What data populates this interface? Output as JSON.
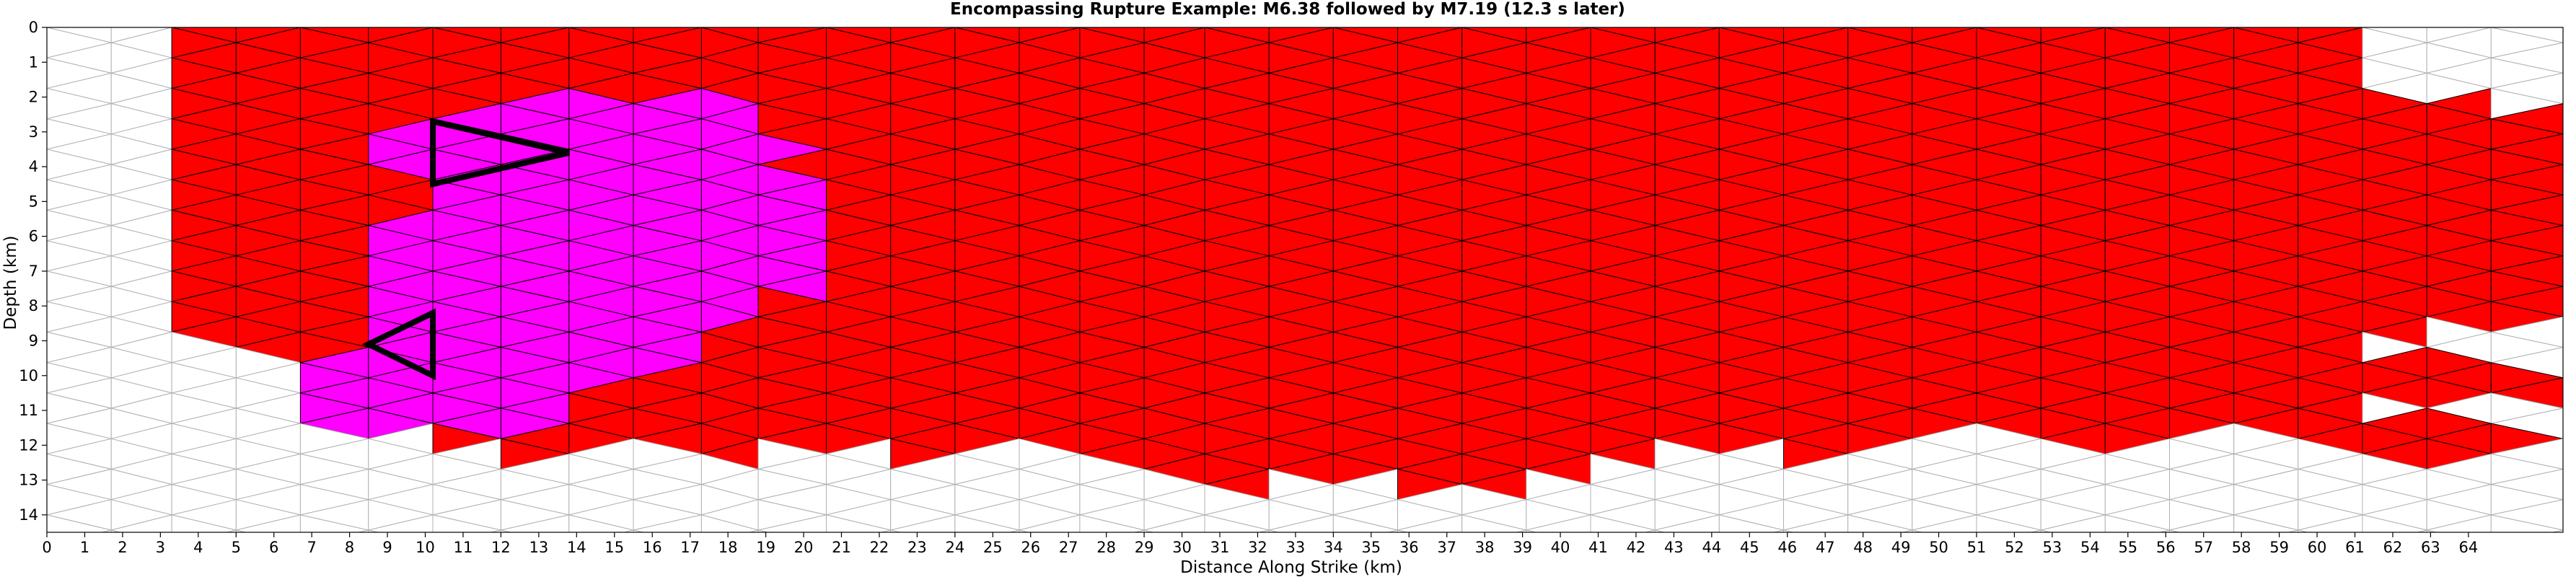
{
  "chart_data": {
    "type": "heatmap",
    "title": "Encompassing Rupture Example: M6.38 followed by M7.19 (12.3 s later)",
    "xlabel": "Distance Along Strike (km)",
    "ylabel": "Depth (km)",
    "xlim": [
      0,
      66.5
    ],
    "ylim": [
      14.5,
      0
    ],
    "x_ticks": [
      0,
      1,
      2,
      3,
      4,
      5,
      6,
      7,
      8,
      9,
      10,
      11,
      12,
      13,
      14,
      15,
      16,
      17,
      18,
      19,
      20,
      21,
      22,
      23,
      24,
      25,
      26,
      27,
      28,
      29,
      30,
      31,
      32,
      33,
      34,
      35,
      36,
      37,
      38,
      39,
      40,
      41,
      42,
      43,
      44,
      45,
      46,
      47,
      48,
      49,
      50,
      51,
      52,
      53,
      54,
      55,
      56,
      57,
      58,
      59,
      60,
      61,
      62,
      63,
      64
    ],
    "x_tick_labels": [
      "0",
      "1",
      "2",
      "3",
      "4",
      "5",
      "6",
      "7",
      "8",
      "9",
      "10",
      "11",
      "12",
      "13",
      "14",
      "15",
      "16",
      "17",
      "18",
      "19",
      "20",
      "21",
      "22",
      "23",
      "24",
      "25",
      "26",
      "27",
      "28",
      "29",
      "30",
      "31",
      "32",
      "33",
      "34",
      "35",
      "36",
      "37",
      "38",
      "39",
      "40",
      "41",
      "42",
      "43",
      "44",
      "45",
      "46",
      "47",
      "48",
      "49",
      "50",
      "51",
      "52",
      "53",
      "54",
      "55",
      "56",
      "57",
      "58",
      "59",
      "60",
      "61",
      "62",
      "63",
      "64"
    ],
    "y_ticks": [
      0,
      1,
      2,
      3,
      4,
      5,
      6,
      7,
      8,
      9,
      10,
      11,
      12,
      13,
      14
    ],
    "y_tick_labels": [
      "0",
      "1",
      "2",
      "3",
      "4",
      "5",
      "6",
      "7",
      "8",
      "9",
      "10",
      "11",
      "12",
      "13",
      "14"
    ],
    "colors": {
      "m7_rupture": "#ff0000",
      "m6_rupture": "#ff00ff",
      "mesh_line": "#b0b0b0",
      "rupture_edge": "#000000",
      "hypocenter_outline": "#000000"
    },
    "mesh": {
      "columns_x": [
        0,
        1.7,
        3.3,
        5.0,
        6.7,
        8.5,
        10.2,
        12.0,
        13.8,
        15.5,
        17.3,
        18.8,
        20.6,
        22.3,
        24.0,
        25.7,
        27.3,
        29.0,
        30.6,
        32.3,
        34.0,
        35.7,
        37.4,
        39.1,
        40.8,
        42.5,
        44.2,
        45.9,
        47.6,
        49.3,
        51.0,
        52.7,
        54.4,
        56.1,
        57.8,
        59.5,
        61.2,
        62.9,
        64.6,
        66.5
      ],
      "row_step_km": 0.875,
      "rows": 17
    },
    "rupture_m719": {
      "description_label": "M7.19",
      "region": "columns 3.3 to 66.5 km; top edge 0 km; bottom edge irregular between 8 and 13.5 km",
      "top_extent_km": [
        3.3,
        61.2
      ],
      "upper_right_notch_top_km": 2
    },
    "rupture_m638": {
      "description_label": "M6.38",
      "region": "columns 6.7 to 20.6 km; depth 2 to 12 km"
    },
    "highlighted_triangles": [
      {
        "vertices": [
          [
            10.2,
            2.7
          ],
          [
            13.8,
            3.6
          ],
          [
            10.2,
            4.5
          ]
        ]
      },
      {
        "vertices": [
          [
            10.2,
            8.2
          ],
          [
            8.5,
            9.1
          ],
          [
            10.2,
            10.0
          ]
        ]
      }
    ]
  }
}
